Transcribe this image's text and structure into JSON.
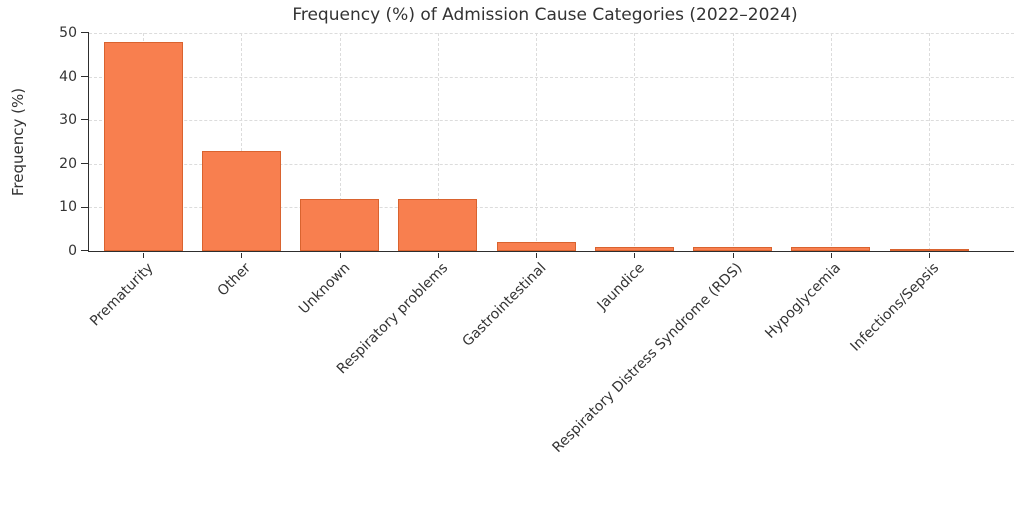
{
  "chart_data": {
    "type": "bar",
    "title": "Frequency (%) of Admission Cause Categories (2022–2024)",
    "xlabel": "",
    "ylabel": "Frequency (%)",
    "categories": [
      "Prematurity",
      "Other",
      "Unknown",
      "Respiratory problems",
      "Gastrointestinal",
      "Jaundice",
      "Respiratory Distress Syndrome (RDS)",
      "Hypoglycemia",
      "Infections/Sepsis"
    ],
    "values": [
      48,
      23,
      12,
      12,
      2,
      1,
      1,
      1,
      0.5
    ],
    "ylim": [
      0,
      50
    ],
    "yticks": [
      0,
      10,
      20,
      30,
      40,
      50
    ],
    "grid": true,
    "grid_style": "dashed",
    "legend_position": "none",
    "colors": {
      "bar": "#f87f4f",
      "bar_edge": "#d9632f",
      "grid": "#dcdcdc",
      "axis": "#2e2e2e",
      "text": "#333333",
      "background": "#ffffff"
    }
  }
}
